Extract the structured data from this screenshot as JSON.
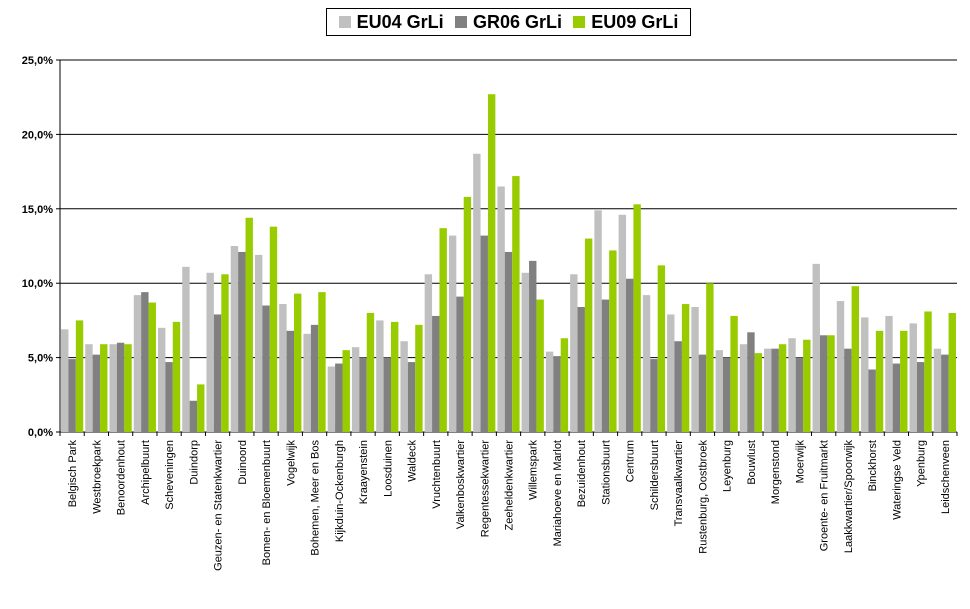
{
  "chart_data": {
    "type": "bar",
    "title": "",
    "xlabel": "",
    "ylabel": "",
    "ylim": [
      0,
      25
    ],
    "y_tick_labels": [
      "0,0%",
      "5,0%",
      "10,0%",
      "15,0%",
      "20,0%",
      "25,0%"
    ],
    "y_ticks": [
      0,
      5,
      10,
      15,
      20,
      25
    ],
    "grid": "horizontal",
    "legend_position": "top-center",
    "categories": [
      "Belgisch Park",
      "Westbroekpark",
      "Benoordenhout",
      "Archipelbuurt",
      "Scheveningen",
      "Duindorp",
      "Geuzen- en Statenkwartier",
      "Duinoord",
      "Bomen- en Bloemenbuurt",
      "Vogelwijk",
      "Bohemen, Meer en Bos",
      "Kijkduin-Ockenburgh",
      "Kraayenstein",
      "Loosduinen",
      "Waldeck",
      "Vruchtenbuurt",
      "Valkenboskwartier",
      "Regentessekwartier",
      "Zeeheldenkwartier",
      "Willemspark",
      "Mariahoeve en Marlot",
      "Bezuidenhout",
      "Stationsbuurt",
      "Centrum",
      "Schildersbuurt",
      "Transvaalkwartier",
      "Rustenburg, Oostbroek",
      "Leyenburg",
      "Bouwlust",
      "Morgenstond",
      "Moerwijk",
      "Groente- en Fruitmarkt",
      "Laakkwartier/Spoorwijk",
      "Binckhorst",
      "Wateringse Veld",
      "Ypenburg",
      "Leidschenveen"
    ],
    "series": [
      {
        "name": "EU04 GrLi",
        "color": "#c0c0c0",
        "values": [
          6.9,
          5.9,
          5.9,
          9.2,
          7.0,
          11.1,
          10.7,
          12.5,
          11.9,
          8.6,
          6.6,
          4.4,
          5.7,
          7.5,
          6.1,
          10.6,
          13.2,
          18.7,
          16.5,
          10.7,
          5.4,
          10.6,
          14.9,
          14.6,
          9.2,
          7.9,
          8.4,
          5.5,
          5.9,
          5.6,
          6.3,
          11.3,
          8.8,
          7.7,
          7.8,
          7.3,
          5.6
        ]
      },
      {
        "name": "GR06 GrLi",
        "color": "#808080",
        "values": [
          4.9,
          5.2,
          6.0,
          9.4,
          4.7,
          2.1,
          7.9,
          12.1,
          8.5,
          6.8,
          7.2,
          4.6,
          5.0,
          5.0,
          4.7,
          7.8,
          9.1,
          13.2,
          12.1,
          11.5,
          5.1,
          8.4,
          8.9,
          10.3,
          4.9,
          6.1,
          5.2,
          5.0,
          6.7,
          5.6,
          5.0,
          6.5,
          5.6,
          4.2,
          4.6,
          4.7,
          5.2
        ]
      },
      {
        "name": "EU09 GrLi",
        "color": "#99cc00",
        "values": [
          7.5,
          5.9,
          5.9,
          8.7,
          7.4,
          3.2,
          10.6,
          14.4,
          13.8,
          9.3,
          9.4,
          5.5,
          8.0,
          7.4,
          7.2,
          13.7,
          15.8,
          22.7,
          17.2,
          8.9,
          6.3,
          13.0,
          12.2,
          15.3,
          11.2,
          8.6,
          10.0,
          7.8,
          5.3,
          5.9,
          6.2,
          6.5,
          9.8,
          6.8,
          6.8,
          8.1,
          8.0
        ]
      }
    ]
  }
}
